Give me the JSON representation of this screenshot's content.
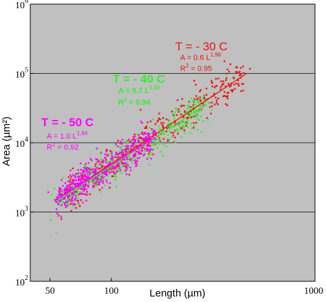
{
  "chart_data": {
    "type": "scatter",
    "xlabel": "Length (µm)",
    "ylabel": "Area (µm²)",
    "xscale": "log",
    "yscale": "log",
    "xlim": [
      40,
      1000
    ],
    "ylim": [
      100,
      1000000
    ],
    "background": "#c0c0c0",
    "grid": "horizontal at decades",
    "x_ticks": [
      {
        "value": 50,
        "label": "50"
      },
      {
        "value": 100,
        "label": "100"
      },
      {
        "value": 1000,
        "label": "1000"
      }
    ],
    "y_ticks": [
      {
        "value": 100,
        "base": "10",
        "exp": "2"
      },
      {
        "value": 1000,
        "base": "10",
        "exp": "3"
      },
      {
        "value": 10000,
        "base": "10",
        "exp": "4"
      },
      {
        "value": 100000,
        "base": "10",
        "exp": "5"
      },
      {
        "value": 1000000,
        "base": "10",
        "exp": "6"
      }
    ],
    "series": [
      {
        "temperature": "T = - 50 C",
        "color": "#ff00ff",
        "fit": {
          "a": 1.0,
          "b": 1.84
        },
        "equation_prefix": "A = 1.0 L",
        "exponent": "1.84",
        "r2_label": "R",
        "r2_value": " = 0.92",
        "x_range": [
          55,
          160
        ]
      },
      {
        "temperature": "T = - 40 C",
        "color": "#33ee33",
        "fit": {
          "a": 0.7,
          "b": 1.91
        },
        "equation_prefix": "A = 0.7 L",
        "exponent": "1.91",
        "r2_label": "R",
        "r2_value": " = 0.94",
        "x_range": [
          55,
          290
        ]
      },
      {
        "temperature": "T = - 30 C",
        "color": "#ee1111",
        "fit": {
          "a": 0.6,
          "b": 1.96
        },
        "equation_prefix": "A = 0.6 L",
        "exponent": "1.96",
        "r2_label": "R",
        "r2_value": " = 0.95",
        "x_range": [
          60,
          450
        ]
      }
    ]
  }
}
